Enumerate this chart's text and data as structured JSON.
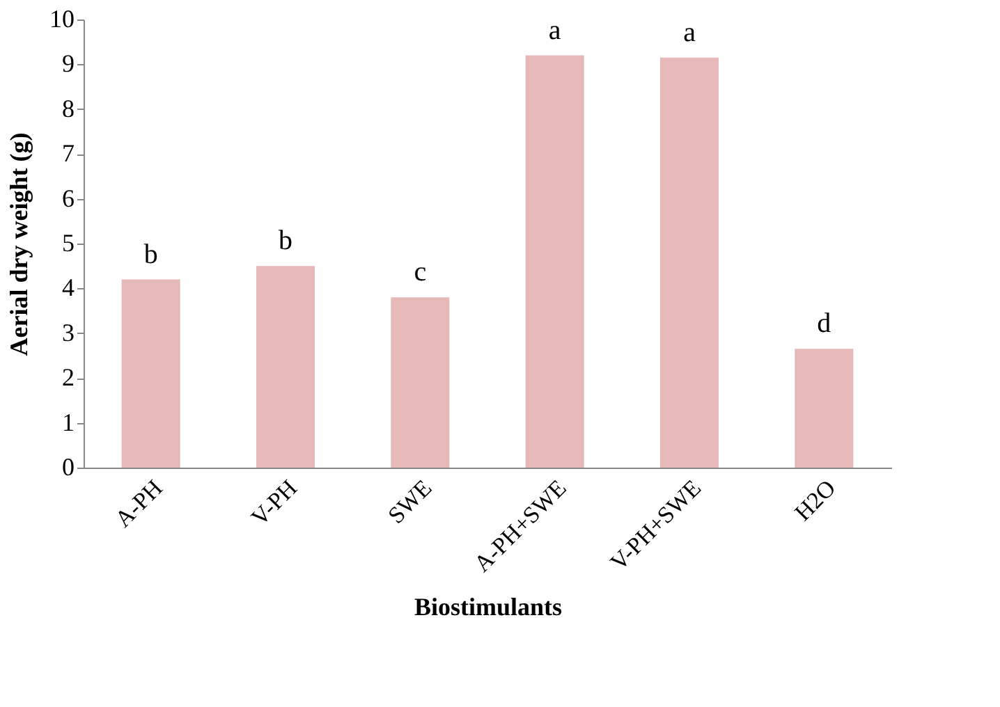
{
  "chart_data": {
    "type": "bar",
    "xlabel": "Biostimulants",
    "ylabel": "Aerial dry weight (g)",
    "categories": [
      "A-PH",
      "V-PH",
      "SWE",
      "A-PH+SWE",
      "V-PH+SWE",
      "H2O"
    ],
    "values": [
      4.2,
      4.5,
      3.8,
      9.2,
      9.15,
      2.65
    ],
    "color": "#e6b8b7",
    "ylim": [
      0,
      10
    ],
    "yticks": [
      0,
      1,
      2,
      3,
      4,
      5,
      6,
      7,
      8,
      9,
      10
    ],
    "grid": false,
    "annotations": [
      {
        "text": "b",
        "x": "A-PH",
        "y": 4.2
      },
      {
        "text": "b",
        "x": "V-PH",
        "y": 4.5
      },
      {
        "text": "c",
        "x": "SWE",
        "y": 3.8
      },
      {
        "text": "a",
        "x": "A-PH+SWE",
        "y": 9.2
      },
      {
        "text": "a",
        "x": "V-PH+SWE",
        "y": 9.15
      },
      {
        "text": "d",
        "x": "H2O",
        "y": 2.65
      }
    ]
  }
}
